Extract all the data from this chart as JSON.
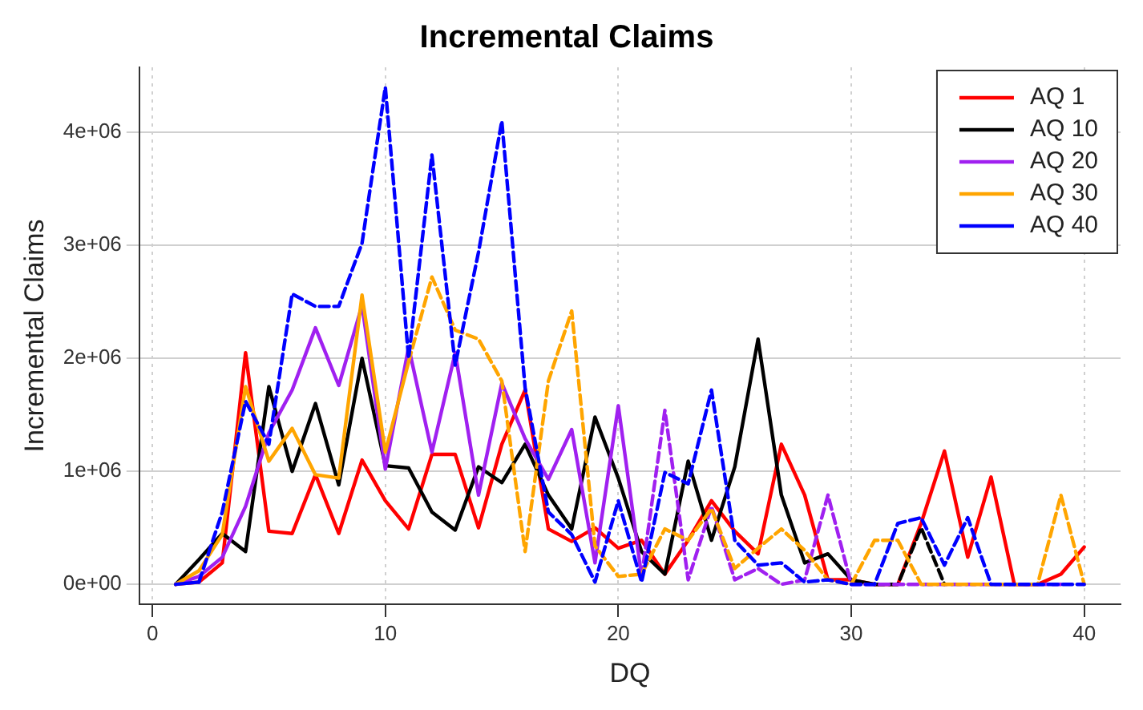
{
  "chart_data": {
    "type": "line",
    "title": "Incremental Claims",
    "xlabel": "DQ",
    "ylabel": "Incremental Claims",
    "xlim": [
      -0.56,
      41.56
    ],
    "xticks": [
      0,
      10,
      20,
      30,
      40
    ],
    "ylim": [
      -176000,
      4576000
    ],
    "yticks": [
      {
        "value": 0,
        "label": "0e+00"
      },
      {
        "value": 1000000,
        "label": "1e+06"
      },
      {
        "value": 2000000,
        "label": "2e+06"
      },
      {
        "value": 3000000,
        "label": "3e+06"
      },
      {
        "value": 4000000,
        "label": "4e+06"
      }
    ],
    "grid": true,
    "legend": "top right",
    "marker": "none",
    "series": [
      {
        "name": "AQ 1",
        "color": "#ff0000",
        "line_style": "solid",
        "x": [
          1,
          2,
          3,
          4,
          5,
          6,
          7,
          8,
          9,
          10,
          11,
          12,
          13,
          14,
          15,
          16,
          17,
          18,
          19,
          20,
          21,
          22,
          23,
          24,
          25,
          26,
          27,
          28,
          29,
          30,
          31,
          32,
          33,
          34,
          35,
          36,
          37,
          38,
          39,
          40
        ],
        "values": [
          0,
          20000,
          190000,
          2050000,
          470000,
          450000,
          970000,
          450000,
          1100000,
          740000,
          490000,
          1150000,
          1150000,
          500000,
          1240000,
          1720000,
          490000,
          380000,
          500000,
          320000,
          390000,
          90000,
          390000,
          740000,
          470000,
          270000,
          1240000,
          790000,
          40000,
          40000,
          0,
          0,
          540000,
          1180000,
          240000,
          950000,
          0,
          0,
          90000,
          330000
        ]
      },
      {
        "name": "AQ 10",
        "color": "#000000",
        "line_style": "solid",
        "x": [
          1,
          2,
          3,
          4,
          5,
          6,
          7,
          8,
          9,
          10,
          11,
          12,
          13,
          14,
          15,
          16,
          17,
          18,
          19,
          20,
          21,
          22,
          23,
          24,
          25,
          26,
          27,
          28,
          29,
          30,
          31
        ],
        "values": [
          0,
          220000,
          450000,
          290000,
          1750000,
          1000000,
          1600000,
          880000,
          2000000,
          1050000,
          1030000,
          640000,
          480000,
          1040000,
          900000,
          1240000,
          790000,
          490000,
          1480000,
          940000,
          290000,
          90000,
          1090000,
          390000,
          1040000,
          2170000,
          790000,
          190000,
          270000,
          40000,
          0
        ]
      },
      {
        "color": "#000000",
        "line_style": "dashed",
        "x": [
          31,
          32,
          33,
          34
        ],
        "values": [
          0,
          0,
          500000,
          0
        ]
      },
      {
        "name": "AQ 20",
        "color": "#a020f0",
        "line_style": "solid",
        "x": [
          1,
          2,
          3,
          4,
          5,
          6,
          7,
          8,
          9,
          10,
          11,
          12,
          13,
          14,
          15,
          16,
          17,
          18,
          19,
          20,
          21
        ],
        "values": [
          0,
          70000,
          240000,
          690000,
          1340000,
          1720000,
          2270000,
          1760000,
          2470000,
          1020000,
          2100000,
          1170000,
          2050000,
          790000,
          1780000,
          1290000,
          930000,
          1370000,
          190000,
          1580000,
          70000
        ]
      },
      {
        "color": "#a020f0",
        "line_style": "dashed",
        "x": [
          21,
          22,
          23,
          24,
          25,
          26,
          27,
          28,
          29,
          30,
          31,
          32,
          33,
          34,
          35,
          36,
          37,
          38,
          39
        ],
        "values": [
          70000,
          1540000,
          40000,
          690000,
          40000,
          140000,
          0,
          40000,
          790000,
          0,
          0,
          0,
          0,
          0,
          0,
          0,
          0,
          0,
          0
        ]
      },
      {
        "name": "AQ 30",
        "color": "#ffa500",
        "line_style": "solid",
        "x": [
          1,
          2,
          3,
          4,
          5,
          6,
          7,
          8,
          9,
          10,
          11
        ],
        "values": [
          0,
          120000,
          440000,
          1750000,
          1090000,
          1380000,
          970000,
          940000,
          2560000,
          1170000,
          1970000
        ]
      },
      {
        "color": "#ffa500",
        "line_style": "dashed",
        "x": [
          11,
          12,
          13,
          14,
          15,
          16,
          17,
          18,
          19,
          20,
          21,
          22,
          23,
          24,
          25,
          26,
          27,
          28,
          29,
          30,
          31,
          32,
          33,
          34,
          35,
          36,
          37,
          38,
          39,
          40
        ],
        "values": [
          1970000,
          2720000,
          2250000,
          2170000,
          1800000,
          290000,
          1800000,
          2420000,
          340000,
          70000,
          90000,
          490000,
          390000,
          670000,
          140000,
          320000,
          490000,
          300000,
          40000,
          0,
          390000,
          390000,
          0,
          0,
          0,
          0,
          0,
          0,
          790000,
          0
        ]
      },
      {
        "name": "AQ 40",
        "color": "#0000ff",
        "line_style": "solid",
        "x": [
          1,
          2
        ],
        "values": [
          0,
          20000
        ]
      },
      {
        "color": "#0000ff",
        "line_style": "dashed",
        "x": [
          2,
          3,
          4,
          5,
          6,
          7,
          8,
          9,
          10,
          11,
          12,
          13,
          14,
          15,
          16,
          17,
          18,
          19,
          20,
          21,
          22,
          23,
          24,
          25,
          26,
          27,
          28,
          29,
          30,
          31,
          32,
          33,
          34,
          35,
          36,
          37,
          38,
          39,
          40
        ],
        "values": [
          20000,
          640000,
          1620000,
          1240000,
          2570000,
          2460000,
          2460000,
          3020000,
          4400000,
          2000000,
          3800000,
          1940000,
          2940000,
          4100000,
          1740000,
          640000,
          440000,
          20000,
          740000,
          20000,
          990000,
          890000,
          1720000,
          390000,
          170000,
          190000,
          20000,
          40000,
          0,
          0,
          540000,
          590000,
          170000,
          590000,
          0,
          0,
          0,
          0,
          0
        ]
      }
    ]
  }
}
